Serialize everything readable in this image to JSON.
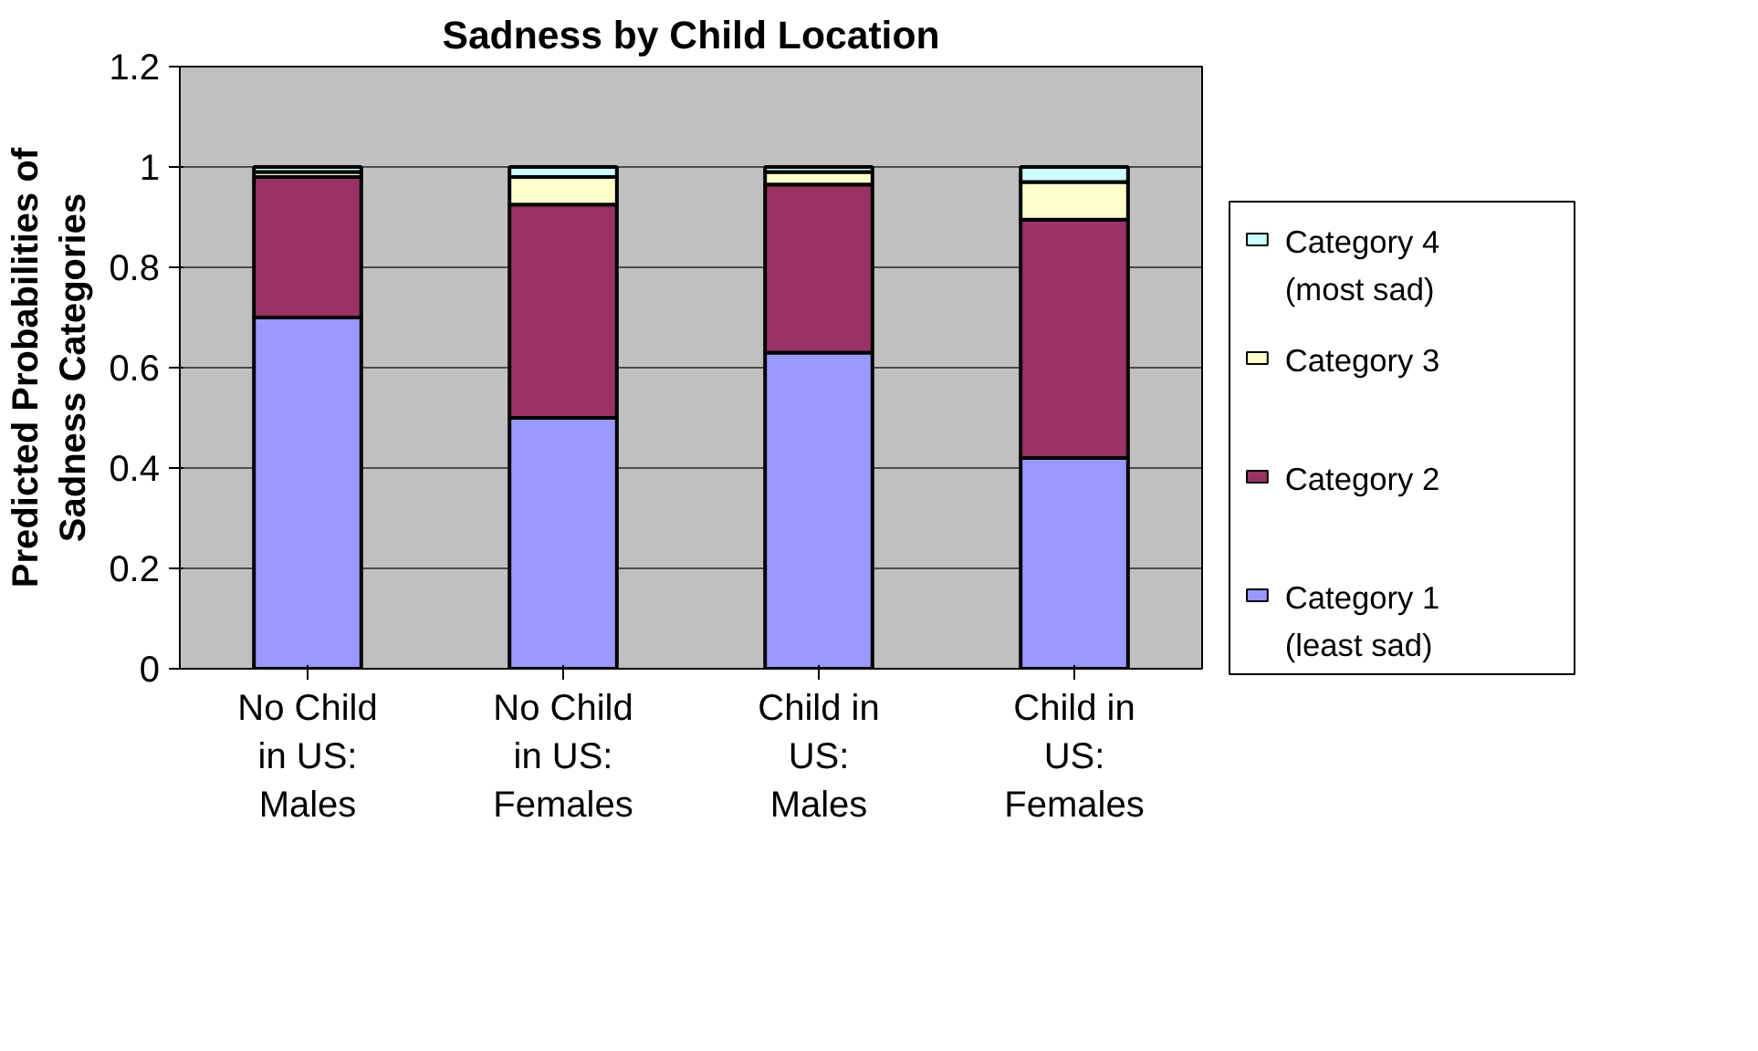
{
  "chart_data": {
    "type": "bar",
    "title": "Sadness by Child Location",
    "ylabel": "Predicted Probabilities of Sadness Categories",
    "categories": [
      "No Child in US: Males",
      "No Child in US: Females",
      "Child in US: Males",
      "Child in US: Females"
    ],
    "stacked": true,
    "ylim": [
      0,
      1.2
    ],
    "yticks": [
      0,
      0.2,
      0.4,
      0.6,
      0.8,
      1,
      1.2
    ],
    "grid": "y",
    "legend": "right",
    "series": [
      {
        "name": "Category 1 (least sad)",
        "color": "#9999ff",
        "values": [
          0.7,
          0.5,
          0.63,
          0.42
        ]
      },
      {
        "name": "Category 2",
        "color": "#993366",
        "values": [
          0.28,
          0.425,
          0.335,
          0.475
        ]
      },
      {
        "name": "Category 3",
        "color": "#ffffcc",
        "values": [
          0.01,
          0.055,
          0.025,
          0.075
        ]
      },
      {
        "name": "Category 4 (most sad)",
        "color": "#ccffff",
        "values": [
          0.01,
          0.02,
          0.01,
          0.03
        ]
      }
    ]
  }
}
